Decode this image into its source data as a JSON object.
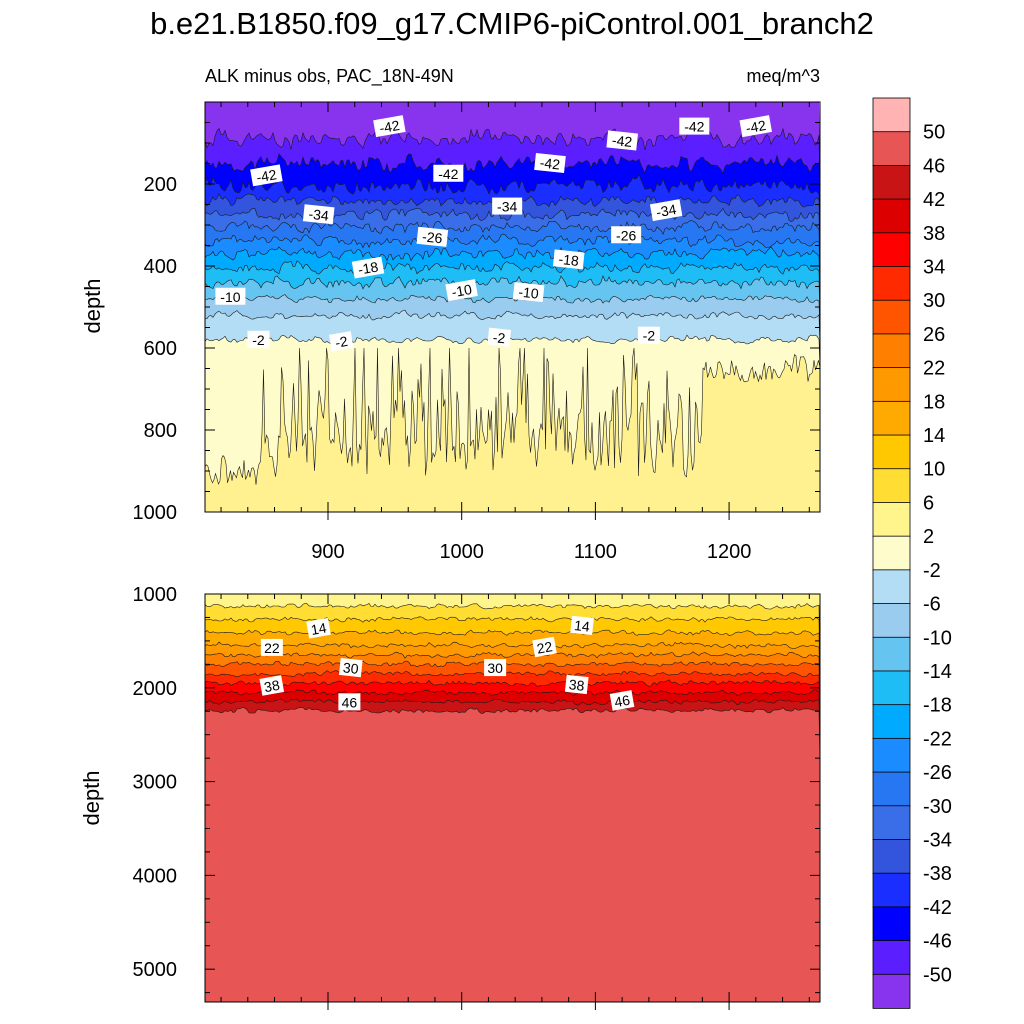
{
  "chart_data": [
    {
      "type": "contour",
      "panel": "upper",
      "title": "b.e21.B1850.f09_g17.CMIP6-piControl.001_branch2",
      "subtitle_left": "ALK minus obs, PAC_18N-49N",
      "subtitle_right": "meq/m^3",
      "xlabel": "",
      "ylabel": "depth",
      "xlim": [
        808,
        1268
      ],
      "ylim": [
        1000,
        0
      ],
      "xticks": [
        900,
        1000,
        1100,
        1200
      ],
      "yticks": [
        200,
        400,
        600,
        800,
        1000
      ],
      "xtick_labels": [
        "900",
        "1000",
        "1100",
        "1200"
      ],
      "ytick_labels": [
        "200",
        "400",
        "600",
        "800",
        "1000"
      ],
      "contour_bands": [
        {
          "value": -50,
          "depth_top": 0,
          "depth_bottom": 90
        },
        {
          "value": -46,
          "depth_top": 90,
          "depth_bottom": 150
        },
        {
          "value": -42,
          "depth_top": 150,
          "depth_bottom": 205
        },
        {
          "value": -38,
          "depth_top": 205,
          "depth_bottom": 240
        },
        {
          "value": -34,
          "depth_top": 240,
          "depth_bottom": 275
        },
        {
          "value": -30,
          "depth_top": 275,
          "depth_bottom": 305
        },
        {
          "value": -26,
          "depth_top": 305,
          "depth_bottom": 340
        },
        {
          "value": -22,
          "depth_top": 340,
          "depth_bottom": 370
        },
        {
          "value": -18,
          "depth_top": 370,
          "depth_bottom": 405
        },
        {
          "value": -14,
          "depth_top": 405,
          "depth_bottom": 440
        },
        {
          "value": -10,
          "depth_top": 440,
          "depth_bottom": 480
        },
        {
          "value": -6,
          "depth_top": 480,
          "depth_bottom": 520
        },
        {
          "value": -2,
          "depth_top": 520,
          "depth_bottom": 580
        },
        {
          "value": 2,
          "depth_top": 580,
          "depth_bottom": 1000
        }
      ],
      "contour_labels": [
        {
          "text": "-42",
          "x": 946,
          "depth": 60
        },
        {
          "text": "-42",
          "x": 1120,
          "depth": 95
        },
        {
          "text": "-42",
          "x": 1174,
          "depth": 60
        },
        {
          "text": "-42",
          "x": 1220,
          "depth": 60
        },
        {
          "text": "-42",
          "x": 1066,
          "depth": 150
        },
        {
          "text": "-42",
          "x": 990,
          "depth": 175
        },
        {
          "text": "-42",
          "x": 854,
          "depth": 180
        },
        {
          "text": "-34",
          "x": 893,
          "depth": 275
        },
        {
          "text": "-34",
          "x": 1034,
          "depth": 255
        },
        {
          "text": "-34",
          "x": 1153,
          "depth": 265
        },
        {
          "text": "-26",
          "x": 978,
          "depth": 330
        },
        {
          "text": "-26",
          "x": 1123,
          "depth": 325
        },
        {
          "text": "-18",
          "x": 930,
          "depth": 405
        },
        {
          "text": "-18",
          "x": 1080,
          "depth": 385
        },
        {
          "text": "-10",
          "x": 827,
          "depth": 475
        },
        {
          "text": "-10",
          "x": 1000,
          "depth": 460
        },
        {
          "text": "-10",
          "x": 1050,
          "depth": 465
        },
        {
          "text": "-2",
          "x": 848,
          "depth": 580
        },
        {
          "text": "-2",
          "x": 910,
          "depth": 585
        },
        {
          "text": "-2",
          "x": 1028,
          "depth": 575
        },
        {
          "text": "-2",
          "x": 1140,
          "depth": 570
        }
      ]
    },
    {
      "type": "contour",
      "panel": "lower",
      "xlabel": "",
      "ylabel": "depth",
      "xlim": [
        808,
        1268
      ],
      "ylim": [
        5350,
        1000
      ],
      "yticks": [
        1000,
        2000,
        3000,
        4000,
        5000
      ],
      "ytick_labels": [
        "1000",
        "2000",
        "3000",
        "4000",
        "5000"
      ],
      "contour_bands": [
        {
          "value": 6,
          "depth_top": 1000,
          "depth_bottom": 1130
        },
        {
          "value": 10,
          "depth_top": 1130,
          "depth_bottom": 1270
        },
        {
          "value": 14,
          "depth_top": 1270,
          "depth_bottom": 1410
        },
        {
          "value": 18,
          "depth_top": 1410,
          "depth_bottom": 1550
        },
        {
          "value": 22,
          "depth_top": 1550,
          "depth_bottom": 1650
        },
        {
          "value": 26,
          "depth_top": 1650,
          "depth_bottom": 1750
        },
        {
          "value": 30,
          "depth_top": 1750,
          "depth_bottom": 1850
        },
        {
          "value": 34,
          "depth_top": 1850,
          "depth_bottom": 1950
        },
        {
          "value": 38,
          "depth_top": 1950,
          "depth_bottom": 2050
        },
        {
          "value": 42,
          "depth_top": 2050,
          "depth_bottom": 2150
        },
        {
          "value": 46,
          "depth_top": 2150,
          "depth_bottom": 2240
        },
        {
          "value": 50,
          "depth_top": 2240,
          "depth_bottom": 5350
        }
      ],
      "contour_labels": [
        {
          "text": "14",
          "x": 893,
          "depth": 1370
        },
        {
          "text": "14",
          "x": 1090,
          "depth": 1340
        },
        {
          "text": "22",
          "x": 858,
          "depth": 1575
        },
        {
          "text": "22",
          "x": 1062,
          "depth": 1570
        },
        {
          "text": "30",
          "x": 917,
          "depth": 1790
        },
        {
          "text": "30",
          "x": 1025,
          "depth": 1790
        },
        {
          "text": "38",
          "x": 858,
          "depth": 1980
        },
        {
          "text": "38",
          "x": 1086,
          "depth": 1970
        },
        {
          "text": "46",
          "x": 916,
          "depth": 2155
        },
        {
          "text": "46",
          "x": 1120,
          "depth": 2140
        }
      ]
    }
  ],
  "colorbar": {
    "labels": [
      "50",
      "46",
      "42",
      "38",
      "34",
      "30",
      "26",
      "22",
      "18",
      "14",
      "10",
      "6",
      "2",
      "-2",
      "-6",
      "-10",
      "-14",
      "-18",
      "-22",
      "-26",
      "-30",
      "-34",
      "-38",
      "-42",
      "-46",
      "-50"
    ],
    "colors": [
      "#ffb3b3",
      "#e85555",
      "#c81414",
      "#dd0000",
      "#ff0000",
      "#ff2a00",
      "#ff5500",
      "#ff7f00",
      "#ff9900",
      "#ffaa00",
      "#ffc800",
      "#ffdd33",
      "#fff58c",
      "#fffccb",
      "#b3ddf5",
      "#99ccee",
      "#66c4f0",
      "#1fbdf5",
      "#00aaff",
      "#1a8cff",
      "#2877f2",
      "#3a6ee8",
      "#3355dd",
      "#1a2eff",
      "#0000ff",
      "#5a1eff",
      "#8833ee"
    ]
  }
}
